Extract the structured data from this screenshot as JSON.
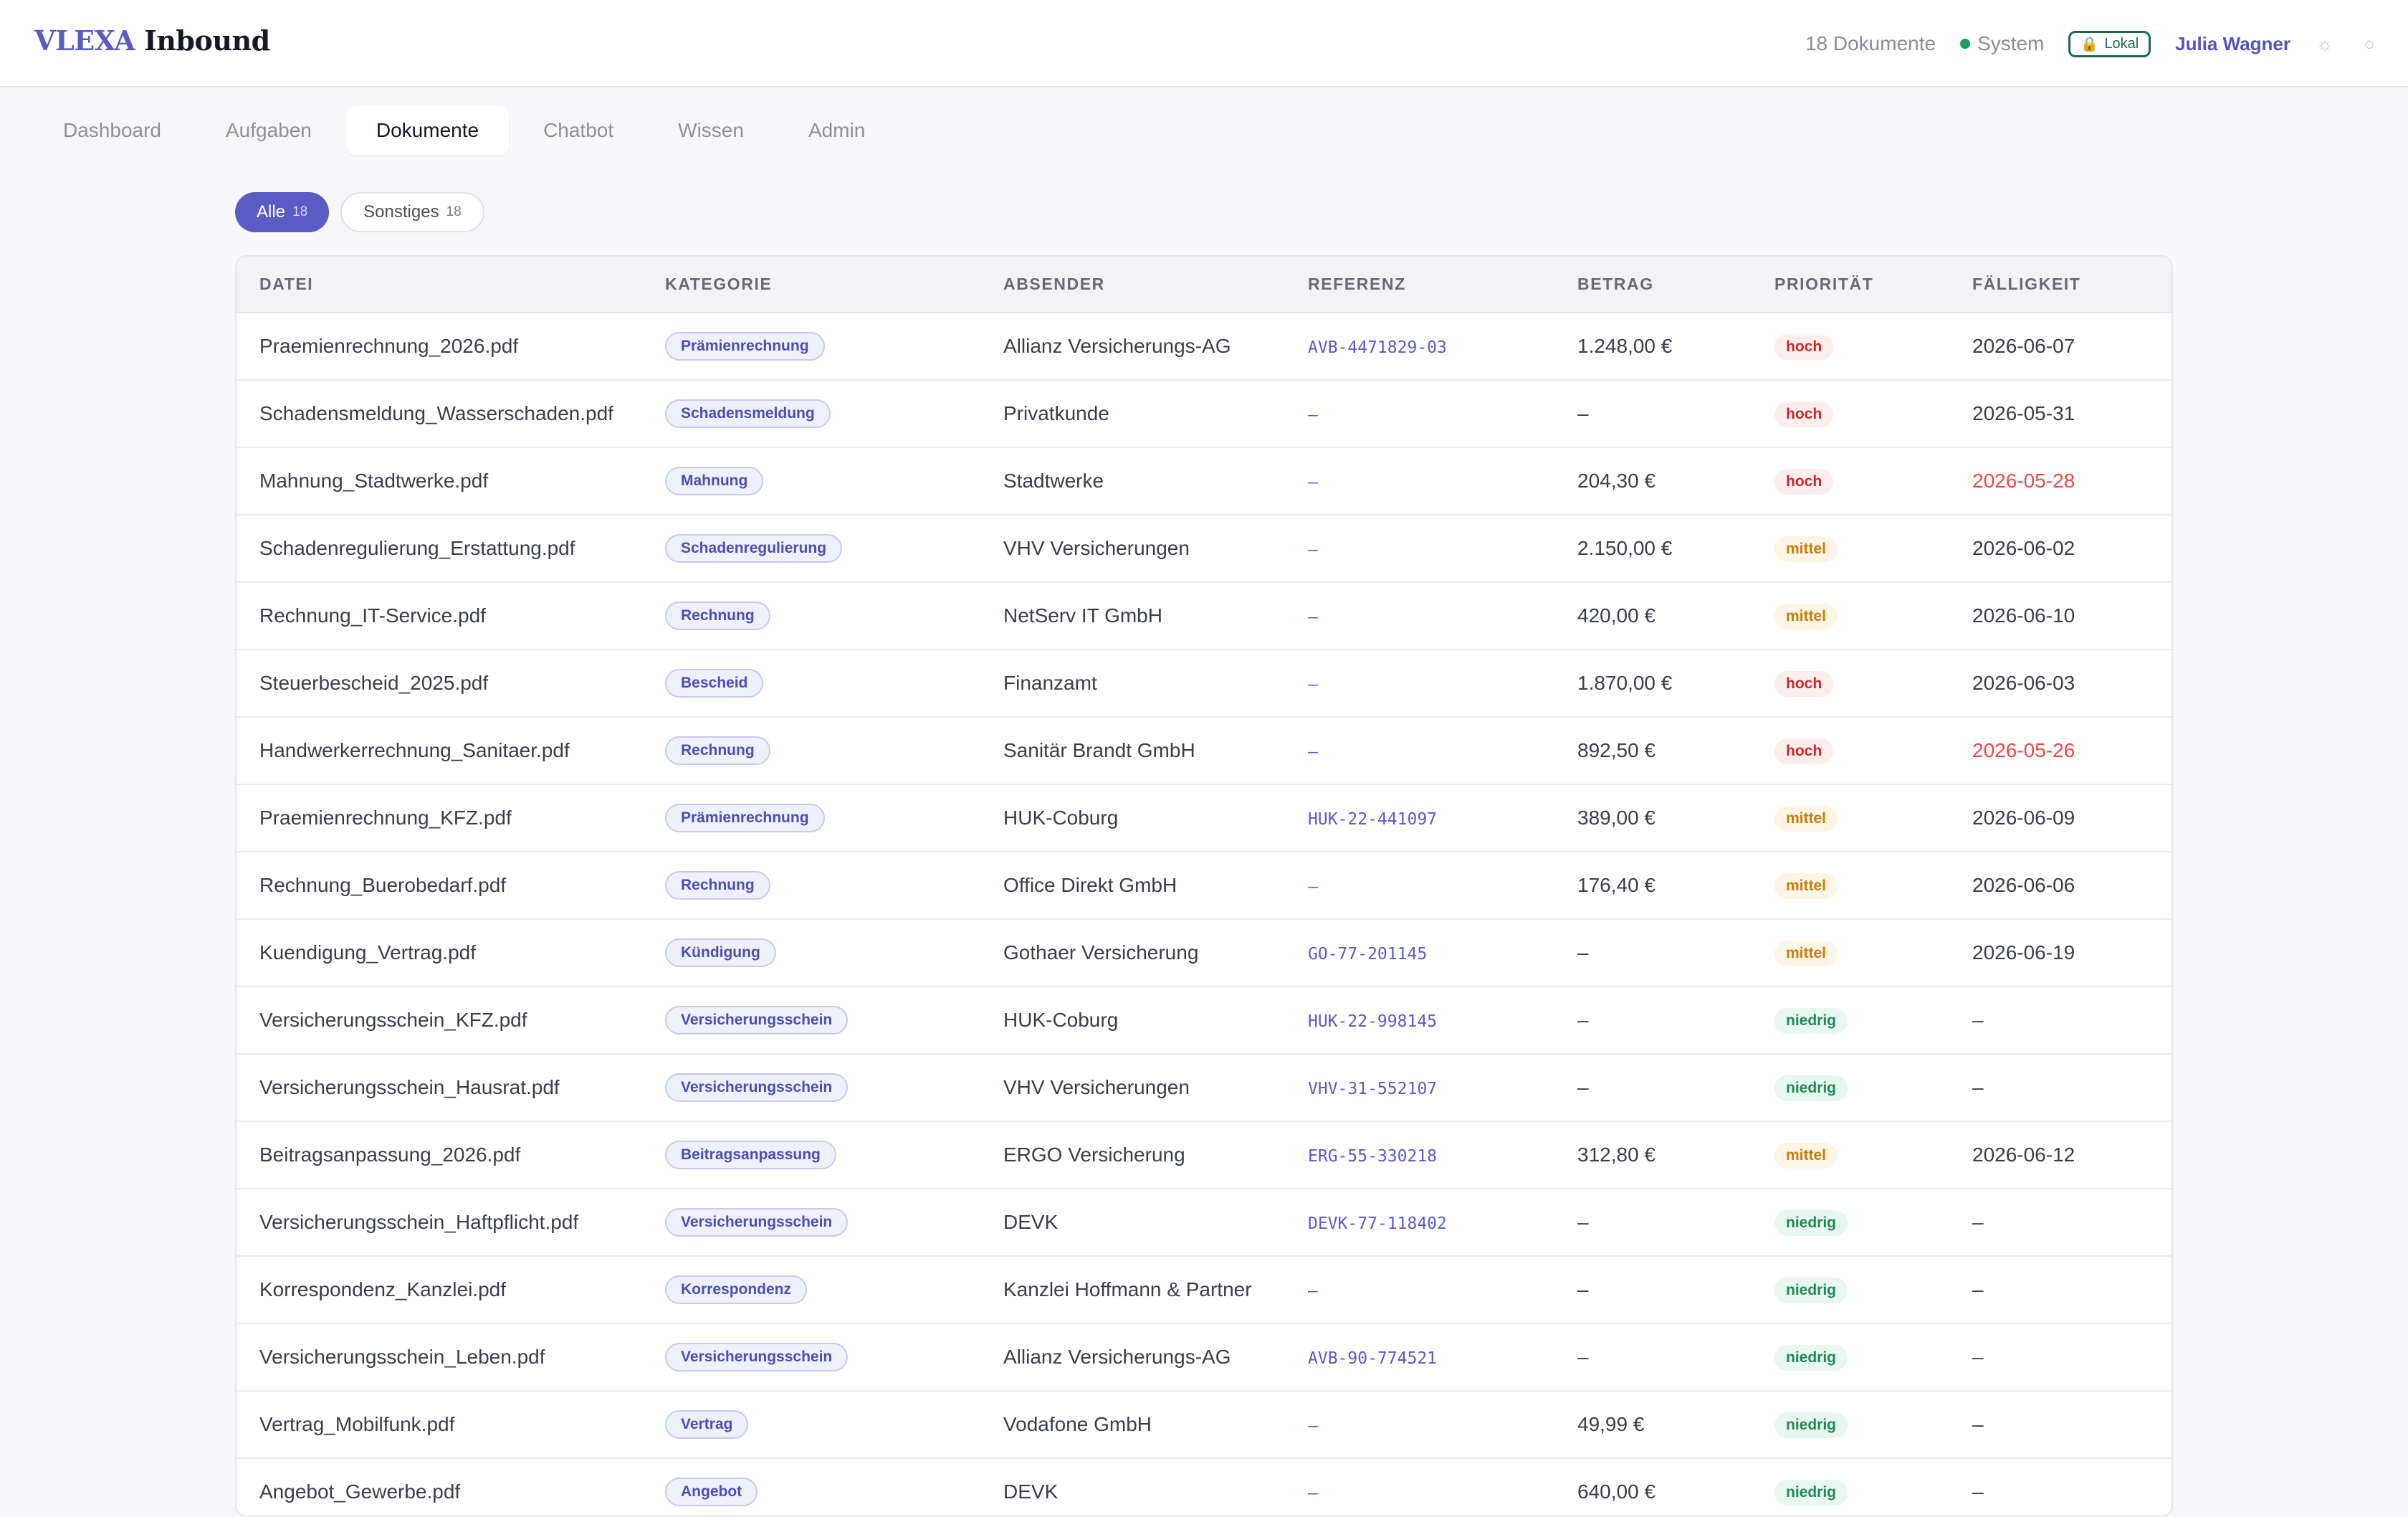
{
  "app": {
    "brand_first": "VLEXA",
    "brand_second": "Inbound",
    "doc_count": "18 Dokumente",
    "system_label": "System",
    "lokal_label": "Lokal",
    "user_name": "Julia Wagner"
  },
  "colors": {
    "accent": "#5b5bc4",
    "status_ok": "#1e9c68",
    "prio_high": "#c62a2a",
    "prio_mid": "#c87d0a",
    "prio_low": "#1e8a55",
    "overdue": "#e84c4c"
  },
  "icons": {
    "lock": "lock-icon",
    "theme": "sun-icon",
    "settings": "circle-icon"
  },
  "nav": {
    "tabs": [
      "Dashboard",
      "Aufgaben",
      "Dokumente",
      "Chatbot",
      "Wissen",
      "Admin"
    ],
    "active": "Dokumente"
  },
  "filters": [
    {
      "label": "Alle",
      "count": "18",
      "active": true
    },
    {
      "label": "Sonstiges",
      "count": "18",
      "active": false
    }
  ],
  "table": {
    "columns": [
      "DATEI",
      "KATEGORIE",
      "ABSENDER",
      "REFERENZ",
      "BETRAG",
      "PRIORITÄT",
      "FÄLLIGKEIT"
    ],
    "rows": [
      {
        "datei": "Praemienrechnung_2026.pdf",
        "kategorie": "Prämienrechnung",
        "absender": "Allianz Versicherungs-AG",
        "referenz": "AVB-4471829-03",
        "betrag": "1.248,00 €",
        "prioritaet": "hoch",
        "faelligkeit": "2026-06-07",
        "overdue": false
      },
      {
        "datei": "Schadensmeldung_Wasserschaden.pdf",
        "kategorie": "Schadensmeldung",
        "absender": "Privatkunde",
        "referenz": "–",
        "betrag": "–",
        "prioritaet": "hoch",
        "faelligkeit": "2026-05-31",
        "overdue": false
      },
      {
        "datei": "Mahnung_Stadtwerke.pdf",
        "kategorie": "Mahnung",
        "absender": "Stadtwerke",
        "referenz": "–",
        "betrag": "204,30 €",
        "prioritaet": "hoch",
        "faelligkeit": "2026-05-28",
        "overdue": true
      },
      {
        "datei": "Schadenregulierung_Erstattung.pdf",
        "kategorie": "Schadenregulierung",
        "absender": "VHV Versicherungen",
        "referenz": "–",
        "betrag": "2.150,00 €",
        "prioritaet": "mittel",
        "faelligkeit": "2026-06-02",
        "overdue": false
      },
      {
        "datei": "Rechnung_IT-Service.pdf",
        "kategorie": "Rechnung",
        "absender": "NetServ IT GmbH",
        "referenz": "–",
        "betrag": "420,00 €",
        "prioritaet": "mittel",
        "faelligkeit": "2026-06-10",
        "overdue": false
      },
      {
        "datei": "Steuerbescheid_2025.pdf",
        "kategorie": "Bescheid",
        "absender": "Finanzamt",
        "referenz": "–",
        "betrag": "1.870,00 €",
        "prioritaet": "hoch",
        "faelligkeit": "2026-06-03",
        "overdue": false
      },
      {
        "datei": "Handwerkerrechnung_Sanitaer.pdf",
        "kategorie": "Rechnung",
        "absender": "Sanitär Brandt GmbH",
        "referenz": "–",
        "betrag": "892,50 €",
        "prioritaet": "hoch",
        "faelligkeit": "2026-05-26",
        "overdue": true
      },
      {
        "datei": "Praemienrechnung_KFZ.pdf",
        "kategorie": "Prämienrechnung",
        "absender": "HUK-Coburg",
        "referenz": "HUK-22-441097",
        "betrag": "389,00 €",
        "prioritaet": "mittel",
        "faelligkeit": "2026-06-09",
        "overdue": false
      },
      {
        "datei": "Rechnung_Buerobedarf.pdf",
        "kategorie": "Rechnung",
        "absender": "Office Direkt GmbH",
        "referenz": "–",
        "betrag": "176,40 €",
        "prioritaet": "mittel",
        "faelligkeit": "2026-06-06",
        "overdue": false
      },
      {
        "datei": "Kuendigung_Vertrag.pdf",
        "kategorie": "Kündigung",
        "absender": "Gothaer Versicherung",
        "referenz": "GO-77-201145",
        "betrag": "–",
        "prioritaet": "mittel",
        "faelligkeit": "2026-06-19",
        "overdue": false
      },
      {
        "datei": "Versicherungsschein_KFZ.pdf",
        "kategorie": "Versicherungsschein",
        "absender": "HUK-Coburg",
        "referenz": "HUK-22-998145",
        "betrag": "–",
        "prioritaet": "niedrig",
        "faelligkeit": "–",
        "overdue": false
      },
      {
        "datei": "Versicherungsschein_Hausrat.pdf",
        "kategorie": "Versicherungsschein",
        "absender": "VHV Versicherungen",
        "referenz": "VHV-31-552107",
        "betrag": "–",
        "prioritaet": "niedrig",
        "faelligkeit": "–",
        "overdue": false
      },
      {
        "datei": "Beitragsanpassung_2026.pdf",
        "kategorie": "Beitragsanpassung",
        "absender": "ERGO Versicherung",
        "referenz": "ERG-55-330218",
        "betrag": "312,80 €",
        "prioritaet": "mittel",
        "faelligkeit": "2026-06-12",
        "overdue": false
      },
      {
        "datei": "Versicherungsschein_Haftpflicht.pdf",
        "kategorie": "Versicherungsschein",
        "absender": "DEVK",
        "referenz": "DEVK-77-118402",
        "betrag": "–",
        "prioritaet": "niedrig",
        "faelligkeit": "–",
        "overdue": false
      },
      {
        "datei": "Korrespondenz_Kanzlei.pdf",
        "kategorie": "Korrespondenz",
        "absender": "Kanzlei Hoffmann & Partner",
        "referenz": "–",
        "betrag": "–",
        "prioritaet": "niedrig",
        "faelligkeit": "–",
        "overdue": false
      },
      {
        "datei": "Versicherungsschein_Leben.pdf",
        "kategorie": "Versicherungsschein",
        "absender": "Allianz Versicherungs-AG",
        "referenz": "AVB-90-774521",
        "betrag": "–",
        "prioritaet": "niedrig",
        "faelligkeit": "–",
        "overdue": false
      },
      {
        "datei": "Vertrag_Mobilfunk.pdf",
        "kategorie": "Vertrag",
        "absender": "Vodafone GmbH",
        "referenz": "–",
        "betrag": "49,99 €",
        "prioritaet": "niedrig",
        "faelligkeit": "–",
        "overdue": false
      },
      {
        "datei": "Angebot_Gewerbe.pdf",
        "kategorie": "Angebot",
        "absender": "DEVK",
        "referenz": "–",
        "betrag": "640,00 €",
        "prioritaet": "niedrig",
        "faelligkeit": "–",
        "overdue": false
      }
    ]
  }
}
